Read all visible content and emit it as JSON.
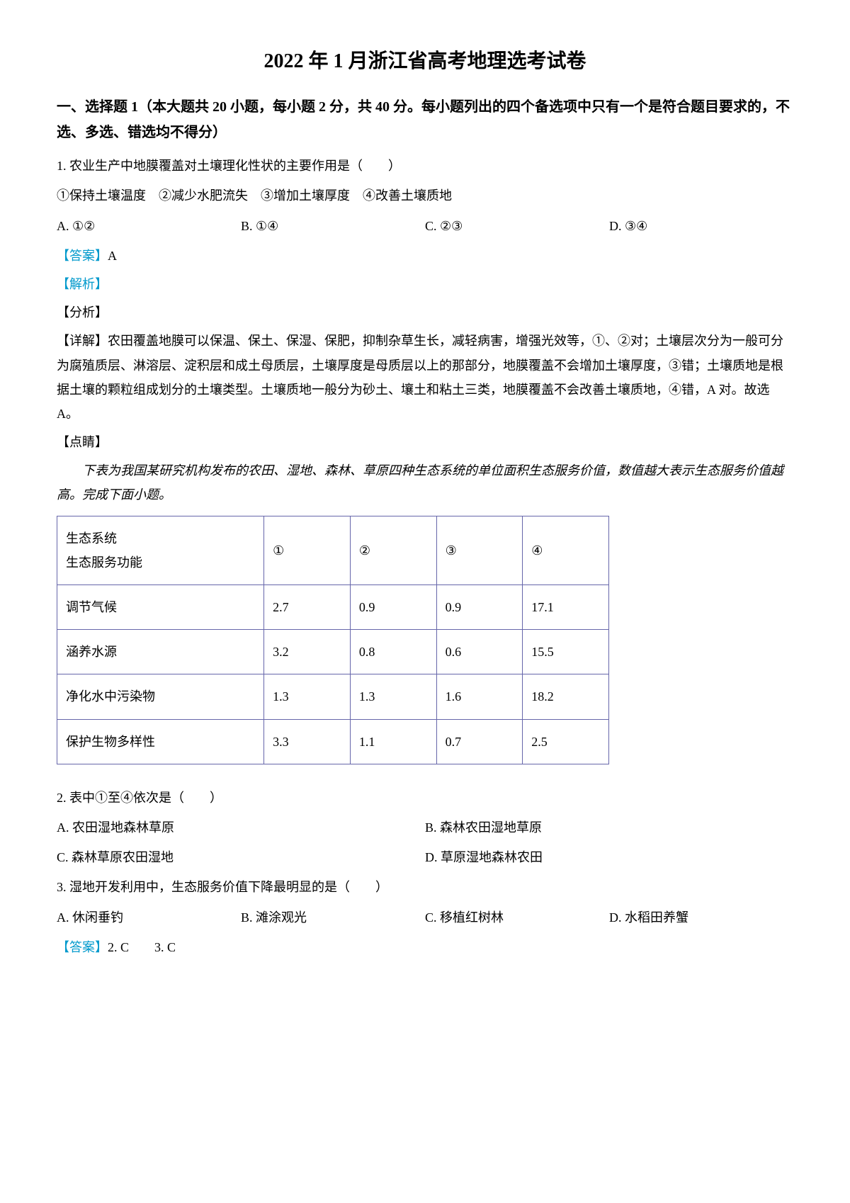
{
  "title": "2022 年 1 月浙江省高考地理选考试卷",
  "section1": {
    "header": "一、选择题 1（本大题共 20 小题，每小题 2 分，共 40 分。每小题列出的四个备选项中只有一个是符合题目要求的，不选、多选、错选均不得分）"
  },
  "q1": {
    "stem": "1. 农业生产中地膜覆盖对土壤理化性状的主要作用是（　　）",
    "items": "①保持土壤温度　②减少水肥流失　③增加土壤厚度　④改善土壤质地",
    "optA": "A. ①②",
    "optB": "B. ①④",
    "optC": "C. ②③",
    "optD": "D. ③④",
    "answer_label": "【答案】",
    "answer_value": "A",
    "analysis_label": "【解析】",
    "fenxi_label": "【分析】",
    "detail": "【详解】农田覆盖地膜可以保温、保土、保湿、保肥，抑制杂草生长，减轻病害，增强光效等，①、②对；土壤层次分为一般可分为腐殖质层、淋溶层、淀积层和成土母质层，土壤厚度是母质层以上的那部分，地膜覆盖不会增加土壤厚度，③错；土壤质地是根据土壤的颗粒组成划分的土壤类型。土壤质地一般分为砂土、壤土和粘土三类，地膜覆盖不会改善土壤质地，④错，A 对。故选 A。",
    "dianjing_label": "【点睛】"
  },
  "table_intro": "下表为我国某研究机构发布的农田、湿地、森林、草原四种生态系统的单位面积生态服务价值，数值越大表示生态服务价值越高。完成下面小题。",
  "table": {
    "header": {
      "cell1_line1": "生态系统",
      "cell1_line2": "生态服务功能",
      "c1": "①",
      "c2": "②",
      "c3": "③",
      "c4": "④"
    },
    "rows": [
      {
        "label": "调节气候",
        "v1": "2.7",
        "v2": "0.9",
        "v3": "0.9",
        "v4": "17.1"
      },
      {
        "label": "涵养水源",
        "v1": "3.2",
        "v2": "0.8",
        "v3": "0.6",
        "v4": "15.5"
      },
      {
        "label": "净化水中污染物",
        "v1": "1.3",
        "v2": "1.3",
        "v3": "1.6",
        "v4": "18.2"
      },
      {
        "label": "保护生物多样性",
        "v1": "3.3",
        "v2": "1.1",
        "v3": "0.7",
        "v4": "2.5"
      }
    ]
  },
  "q2": {
    "stem": "2. 表中①至④依次是（　　）",
    "optA": "A. 农田湿地森林草原",
    "optB": "B. 森林农田湿地草原",
    "optC": "C. 森林草原农田湿地",
    "optD": "D. 草原湿地森林农田"
  },
  "q3": {
    "stem": "3. 湿地开发利用中，生态服务价值下降最明显的是（　　）",
    "optA": "A. 休闲垂钓",
    "optB": "B. 滩涂观光",
    "optC": "C. 移植红树林",
    "optD": "D. 水稻田养蟹"
  },
  "answer23": {
    "label": "【答案】",
    "a2": "2. C",
    "a3": "3. C"
  }
}
